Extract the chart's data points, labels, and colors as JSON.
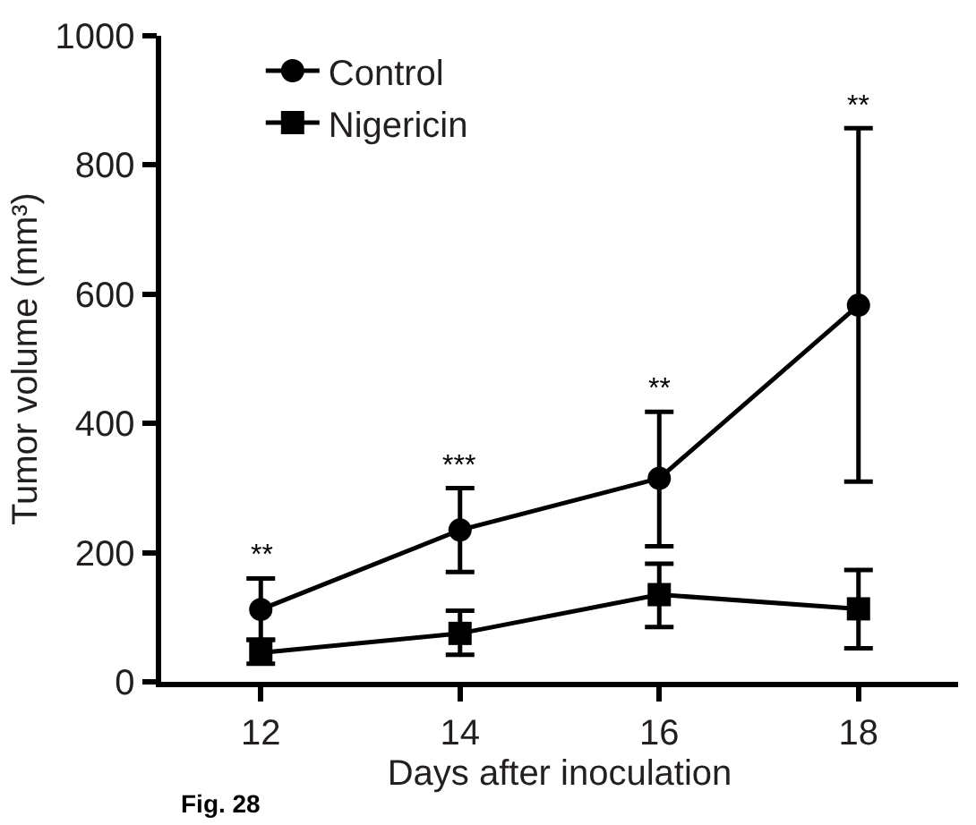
{
  "chart_data": {
    "type": "line",
    "xlabel": "Days after inoculation",
    "ylabel": "Tumor volume (mm³)",
    "x": [
      12,
      14,
      16,
      18
    ],
    "xlim": [
      11,
      19
    ],
    "xticks": [
      12,
      14,
      16,
      18
    ],
    "ylim": [
      0,
      1000
    ],
    "yticks": [
      0,
      200,
      400,
      600,
      800,
      1000
    ],
    "legend": "top left",
    "series": [
      {
        "name": "Control",
        "color": "#000000",
        "marker": "circle",
        "values": [
          112,
          235,
          315,
          583
        ],
        "errors": [
          [
            65,
            160
          ],
          [
            170,
            300
          ],
          [
            210,
            418
          ],
          [
            310,
            857
          ]
        ]
      },
      {
        "name": "Nigericin",
        "color": "#000000",
        "marker": "square",
        "values": [
          45,
          75,
          135,
          113
        ],
        "errors": [
          [
            28,
            65
          ],
          [
            42,
            110
          ],
          [
            85,
            183
          ],
          [
            52,
            173
          ]
        ]
      }
    ],
    "annotations": [
      {
        "text": "**",
        "x": 12,
        "y": 160
      },
      {
        "text": "***",
        "x": 14,
        "y": 300
      },
      {
        "text": "**",
        "x": 16,
        "y": 418
      },
      {
        "text": "**",
        "x": 18,
        "y": 857
      },
      "Fig. 28"
    ]
  }
}
